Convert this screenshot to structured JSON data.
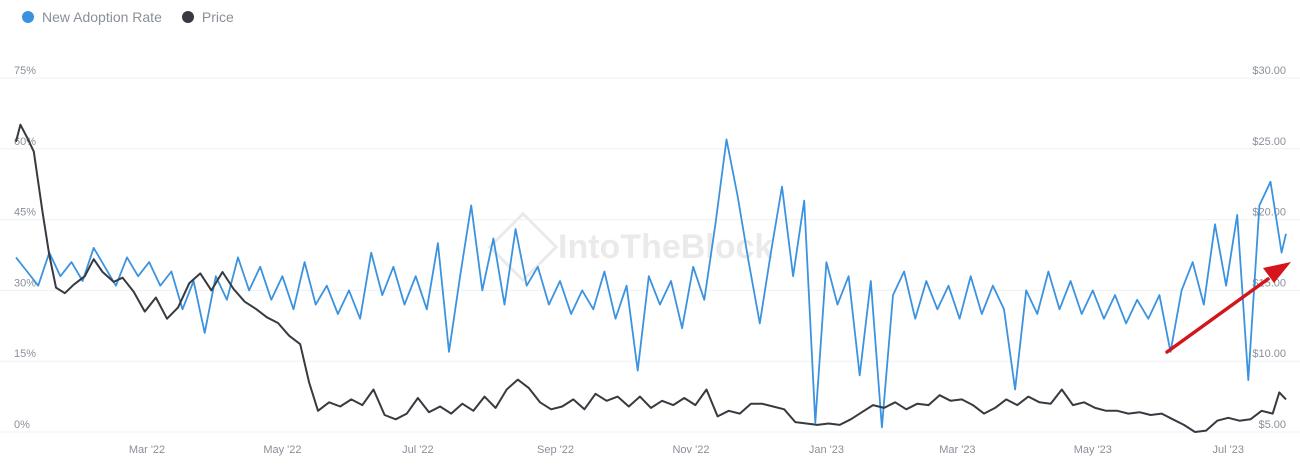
{
  "legend": {
    "items": [
      {
        "label": "New Adoption Rate",
        "color": "#3b93e0"
      },
      {
        "label": "Price",
        "color": "#373a40"
      }
    ]
  },
  "watermark": "IntoTheBlock",
  "annotation": {
    "type": "arrow",
    "color": "#d4151b",
    "meaning": "rising trend in new adoption rate"
  },
  "chart_data": {
    "type": "line",
    "title": "",
    "x_tick_labels": [
      "Mar '22",
      "May '22",
      "Jul '22",
      "Sep '22",
      "Nov '22",
      "Jan '23",
      "Mar '23",
      "May '23",
      "Jul '23"
    ],
    "x_range": [
      "2022-01-01",
      "2023-07-27"
    ],
    "y_left": {
      "ticks": [
        "0%",
        "15%",
        "30%",
        "45%",
        "60%",
        "75%"
      ],
      "range": [
        0,
        75
      ],
      "unit": "%"
    },
    "y_right": {
      "ticks": [
        "$5.00",
        "$10.00",
        "$15.00",
        "$20.00",
        "$25.00",
        "$30.00"
      ],
      "range": [
        5,
        30
      ],
      "unit": "$"
    },
    "grid": "horizontal",
    "series": [
      {
        "name": "New Adoption Rate",
        "axis": "left",
        "color": "#3b93e0",
        "points": [
          [
            "2022-01-01",
            37
          ],
          [
            "2022-01-06",
            34
          ],
          [
            "2022-01-11",
            31
          ],
          [
            "2022-01-16",
            38
          ],
          [
            "2022-01-21",
            33
          ],
          [
            "2022-01-26",
            36
          ],
          [
            "2022-01-31",
            32
          ],
          [
            "2022-02-05",
            39
          ],
          [
            "2022-02-10",
            35
          ],
          [
            "2022-02-15",
            31
          ],
          [
            "2022-02-20",
            37
          ],
          [
            "2022-02-25",
            33
          ],
          [
            "2022-03-02",
            36
          ],
          [
            "2022-03-07",
            31
          ],
          [
            "2022-03-12",
            34
          ],
          [
            "2022-03-17",
            26
          ],
          [
            "2022-03-22",
            32
          ],
          [
            "2022-03-27",
            21
          ],
          [
            "2022-04-01",
            33
          ],
          [
            "2022-04-06",
            28
          ],
          [
            "2022-04-11",
            37
          ],
          [
            "2022-04-16",
            30
          ],
          [
            "2022-04-21",
            35
          ],
          [
            "2022-04-26",
            28
          ],
          [
            "2022-05-01",
            33
          ],
          [
            "2022-05-06",
            26
          ],
          [
            "2022-05-11",
            36
          ],
          [
            "2022-05-16",
            27
          ],
          [
            "2022-05-21",
            31
          ],
          [
            "2022-05-26",
            25
          ],
          [
            "2022-05-31",
            30
          ],
          [
            "2022-06-05",
            24
          ],
          [
            "2022-06-10",
            38
          ],
          [
            "2022-06-15",
            29
          ],
          [
            "2022-06-20",
            35
          ],
          [
            "2022-06-25",
            27
          ],
          [
            "2022-06-30",
            33
          ],
          [
            "2022-07-05",
            26
          ],
          [
            "2022-07-10",
            40
          ],
          [
            "2022-07-15",
            17
          ],
          [
            "2022-07-20",
            33
          ],
          [
            "2022-07-25",
            48
          ],
          [
            "2022-07-30",
            30
          ],
          [
            "2022-08-04",
            41
          ],
          [
            "2022-08-09",
            27
          ],
          [
            "2022-08-14",
            43
          ],
          [
            "2022-08-19",
            31
          ],
          [
            "2022-08-24",
            35
          ],
          [
            "2022-08-29",
            27
          ],
          [
            "2022-09-03",
            32
          ],
          [
            "2022-09-08",
            25
          ],
          [
            "2022-09-13",
            30
          ],
          [
            "2022-09-18",
            26
          ],
          [
            "2022-09-23",
            34
          ],
          [
            "2022-09-28",
            24
          ],
          [
            "2022-10-03",
            31
          ],
          [
            "2022-10-08",
            13
          ],
          [
            "2022-10-13",
            33
          ],
          [
            "2022-10-18",
            27
          ],
          [
            "2022-10-23",
            32
          ],
          [
            "2022-10-28",
            22
          ],
          [
            "2022-11-02",
            35
          ],
          [
            "2022-11-07",
            28
          ],
          [
            "2022-11-12",
            44
          ],
          [
            "2022-11-17",
            62
          ],
          [
            "2022-11-22",
            50
          ],
          [
            "2022-11-27",
            36
          ],
          [
            "2022-12-02",
            23
          ],
          [
            "2022-12-07",
            38
          ],
          [
            "2022-12-12",
            52
          ],
          [
            "2022-12-17",
            33
          ],
          [
            "2022-12-22",
            49
          ],
          [
            "2022-12-27",
            2
          ],
          [
            "2023-01-01",
            36
          ],
          [
            "2023-01-06",
            27
          ],
          [
            "2023-01-11",
            33
          ],
          [
            "2023-01-16",
            12
          ],
          [
            "2023-01-21",
            32
          ],
          [
            "2023-01-26",
            1
          ],
          [
            "2023-01-31",
            29
          ],
          [
            "2023-02-05",
            34
          ],
          [
            "2023-02-10",
            24
          ],
          [
            "2023-02-15",
            32
          ],
          [
            "2023-02-20",
            26
          ],
          [
            "2023-02-25",
            31
          ],
          [
            "2023-03-02",
            24
          ],
          [
            "2023-03-07",
            33
          ],
          [
            "2023-03-12",
            25
          ],
          [
            "2023-03-17",
            31
          ],
          [
            "2023-03-22",
            26
          ],
          [
            "2023-03-27",
            9
          ],
          [
            "2023-04-01",
            30
          ],
          [
            "2023-04-06",
            25
          ],
          [
            "2023-04-11",
            34
          ],
          [
            "2023-04-16",
            26
          ],
          [
            "2023-04-21",
            32
          ],
          [
            "2023-04-26",
            25
          ],
          [
            "2023-05-01",
            30
          ],
          [
            "2023-05-06",
            24
          ],
          [
            "2023-05-11",
            29
          ],
          [
            "2023-05-16",
            23
          ],
          [
            "2023-05-21",
            28
          ],
          [
            "2023-05-26",
            24
          ],
          [
            "2023-05-31",
            29
          ],
          [
            "2023-06-05",
            17
          ],
          [
            "2023-06-10",
            30
          ],
          [
            "2023-06-15",
            36
          ],
          [
            "2023-06-20",
            27
          ],
          [
            "2023-06-25",
            44
          ],
          [
            "2023-06-30",
            31
          ],
          [
            "2023-07-05",
            46
          ],
          [
            "2023-07-10",
            11
          ],
          [
            "2023-07-15",
            48
          ],
          [
            "2023-07-20",
            53
          ],
          [
            "2023-07-25",
            38
          ],
          [
            "2023-07-27",
            42
          ]
        ]
      },
      {
        "name": "Price",
        "axis": "right",
        "color": "#373a40",
        "points": [
          [
            "2022-01-01",
            25.5
          ],
          [
            "2022-01-03",
            26.7
          ],
          [
            "2022-01-06",
            25.8
          ],
          [
            "2022-01-09",
            24.8
          ],
          [
            "2022-01-13",
            20.5
          ],
          [
            "2022-01-16",
            17.5
          ],
          [
            "2022-01-19",
            15.2
          ],
          [
            "2022-01-23",
            14.8
          ],
          [
            "2022-01-27",
            15.4
          ],
          [
            "2022-02-01",
            16.0
          ],
          [
            "2022-02-05",
            17.2
          ],
          [
            "2022-02-09",
            16.3
          ],
          [
            "2022-02-14",
            15.6
          ],
          [
            "2022-02-18",
            15.9
          ],
          [
            "2022-02-23",
            14.9
          ],
          [
            "2022-02-28",
            13.5
          ],
          [
            "2022-03-05",
            14.5
          ],
          [
            "2022-03-10",
            13.0
          ],
          [
            "2022-03-15",
            13.8
          ],
          [
            "2022-03-20",
            15.5
          ],
          [
            "2022-03-25",
            16.2
          ],
          [
            "2022-03-30",
            15.0
          ],
          [
            "2022-04-04",
            16.3
          ],
          [
            "2022-04-09",
            15.1
          ],
          [
            "2022-04-14",
            14.2
          ],
          [
            "2022-04-19",
            13.7
          ],
          [
            "2022-04-24",
            13.1
          ],
          [
            "2022-04-29",
            12.7
          ],
          [
            "2022-05-04",
            11.8
          ],
          [
            "2022-05-09",
            11.2
          ],
          [
            "2022-05-13",
            8.5
          ],
          [
            "2022-05-17",
            6.5
          ],
          [
            "2022-05-22",
            7.1
          ],
          [
            "2022-05-27",
            6.8
          ],
          [
            "2022-06-01",
            7.3
          ],
          [
            "2022-06-06",
            6.9
          ],
          [
            "2022-06-11",
            8.0
          ],
          [
            "2022-06-16",
            6.2
          ],
          [
            "2022-06-21",
            5.9
          ],
          [
            "2022-06-26",
            6.3
          ],
          [
            "2022-07-01",
            7.4
          ],
          [
            "2022-07-06",
            6.4
          ],
          [
            "2022-07-11",
            6.8
          ],
          [
            "2022-07-16",
            6.3
          ],
          [
            "2022-07-21",
            7.0
          ],
          [
            "2022-07-26",
            6.5
          ],
          [
            "2022-07-31",
            7.5
          ],
          [
            "2022-08-05",
            6.7
          ],
          [
            "2022-08-10",
            8.0
          ],
          [
            "2022-08-15",
            8.7
          ],
          [
            "2022-08-20",
            8.1
          ],
          [
            "2022-08-25",
            7.1
          ],
          [
            "2022-08-30",
            6.6
          ],
          [
            "2022-09-04",
            6.8
          ],
          [
            "2022-09-09",
            7.3
          ],
          [
            "2022-09-14",
            6.6
          ],
          [
            "2022-09-19",
            7.7
          ],
          [
            "2022-09-24",
            7.2
          ],
          [
            "2022-09-29",
            7.5
          ],
          [
            "2022-10-04",
            6.8
          ],
          [
            "2022-10-09",
            7.5
          ],
          [
            "2022-10-14",
            6.7
          ],
          [
            "2022-10-19",
            7.2
          ],
          [
            "2022-10-24",
            6.9
          ],
          [
            "2022-10-29",
            7.4
          ],
          [
            "2022-11-03",
            6.9
          ],
          [
            "2022-11-08",
            8.0
          ],
          [
            "2022-11-13",
            6.1
          ],
          [
            "2022-11-18",
            6.5
          ],
          [
            "2022-11-23",
            6.3
          ],
          [
            "2022-11-28",
            7.0
          ],
          [
            "2022-12-03",
            7.0
          ],
          [
            "2022-12-08",
            6.8
          ],
          [
            "2022-12-13",
            6.6
          ],
          [
            "2022-12-18",
            5.7
          ],
          [
            "2022-12-23",
            5.6
          ],
          [
            "2022-12-28",
            5.5
          ],
          [
            "2023-01-02",
            5.6
          ],
          [
            "2023-01-07",
            5.5
          ],
          [
            "2023-01-12",
            5.9
          ],
          [
            "2023-01-17",
            6.4
          ],
          [
            "2023-01-22",
            6.9
          ],
          [
            "2023-01-27",
            6.7
          ],
          [
            "2023-02-01",
            7.1
          ],
          [
            "2023-02-06",
            6.6
          ],
          [
            "2023-02-11",
            7.0
          ],
          [
            "2023-02-16",
            6.9
          ],
          [
            "2023-02-21",
            7.6
          ],
          [
            "2023-02-26",
            7.2
          ],
          [
            "2023-03-03",
            7.3
          ],
          [
            "2023-03-08",
            6.9
          ],
          [
            "2023-03-13",
            6.3
          ],
          [
            "2023-03-18",
            6.7
          ],
          [
            "2023-03-23",
            7.3
          ],
          [
            "2023-03-28",
            6.9
          ],
          [
            "2023-04-02",
            7.5
          ],
          [
            "2023-04-07",
            7.1
          ],
          [
            "2023-04-12",
            7.0
          ],
          [
            "2023-04-17",
            8.0
          ],
          [
            "2023-04-22",
            6.9
          ],
          [
            "2023-04-27",
            7.1
          ],
          [
            "2023-05-02",
            6.7
          ],
          [
            "2023-05-07",
            6.5
          ],
          [
            "2023-05-12",
            6.5
          ],
          [
            "2023-05-17",
            6.3
          ],
          [
            "2023-05-22",
            6.4
          ],
          [
            "2023-05-27",
            6.2
          ],
          [
            "2023-06-01",
            6.3
          ],
          [
            "2023-06-06",
            5.9
          ],
          [
            "2023-06-11",
            5.5
          ],
          [
            "2023-06-16",
            5.0
          ],
          [
            "2023-06-21",
            5.1
          ],
          [
            "2023-06-26",
            5.8
          ],
          [
            "2023-07-01",
            6.0
          ],
          [
            "2023-07-06",
            5.8
          ],
          [
            "2023-07-11",
            5.9
          ],
          [
            "2023-07-16",
            6.5
          ],
          [
            "2023-07-21",
            6.3
          ],
          [
            "2023-07-24",
            7.8
          ],
          [
            "2023-07-27",
            7.3
          ]
        ]
      }
    ]
  }
}
